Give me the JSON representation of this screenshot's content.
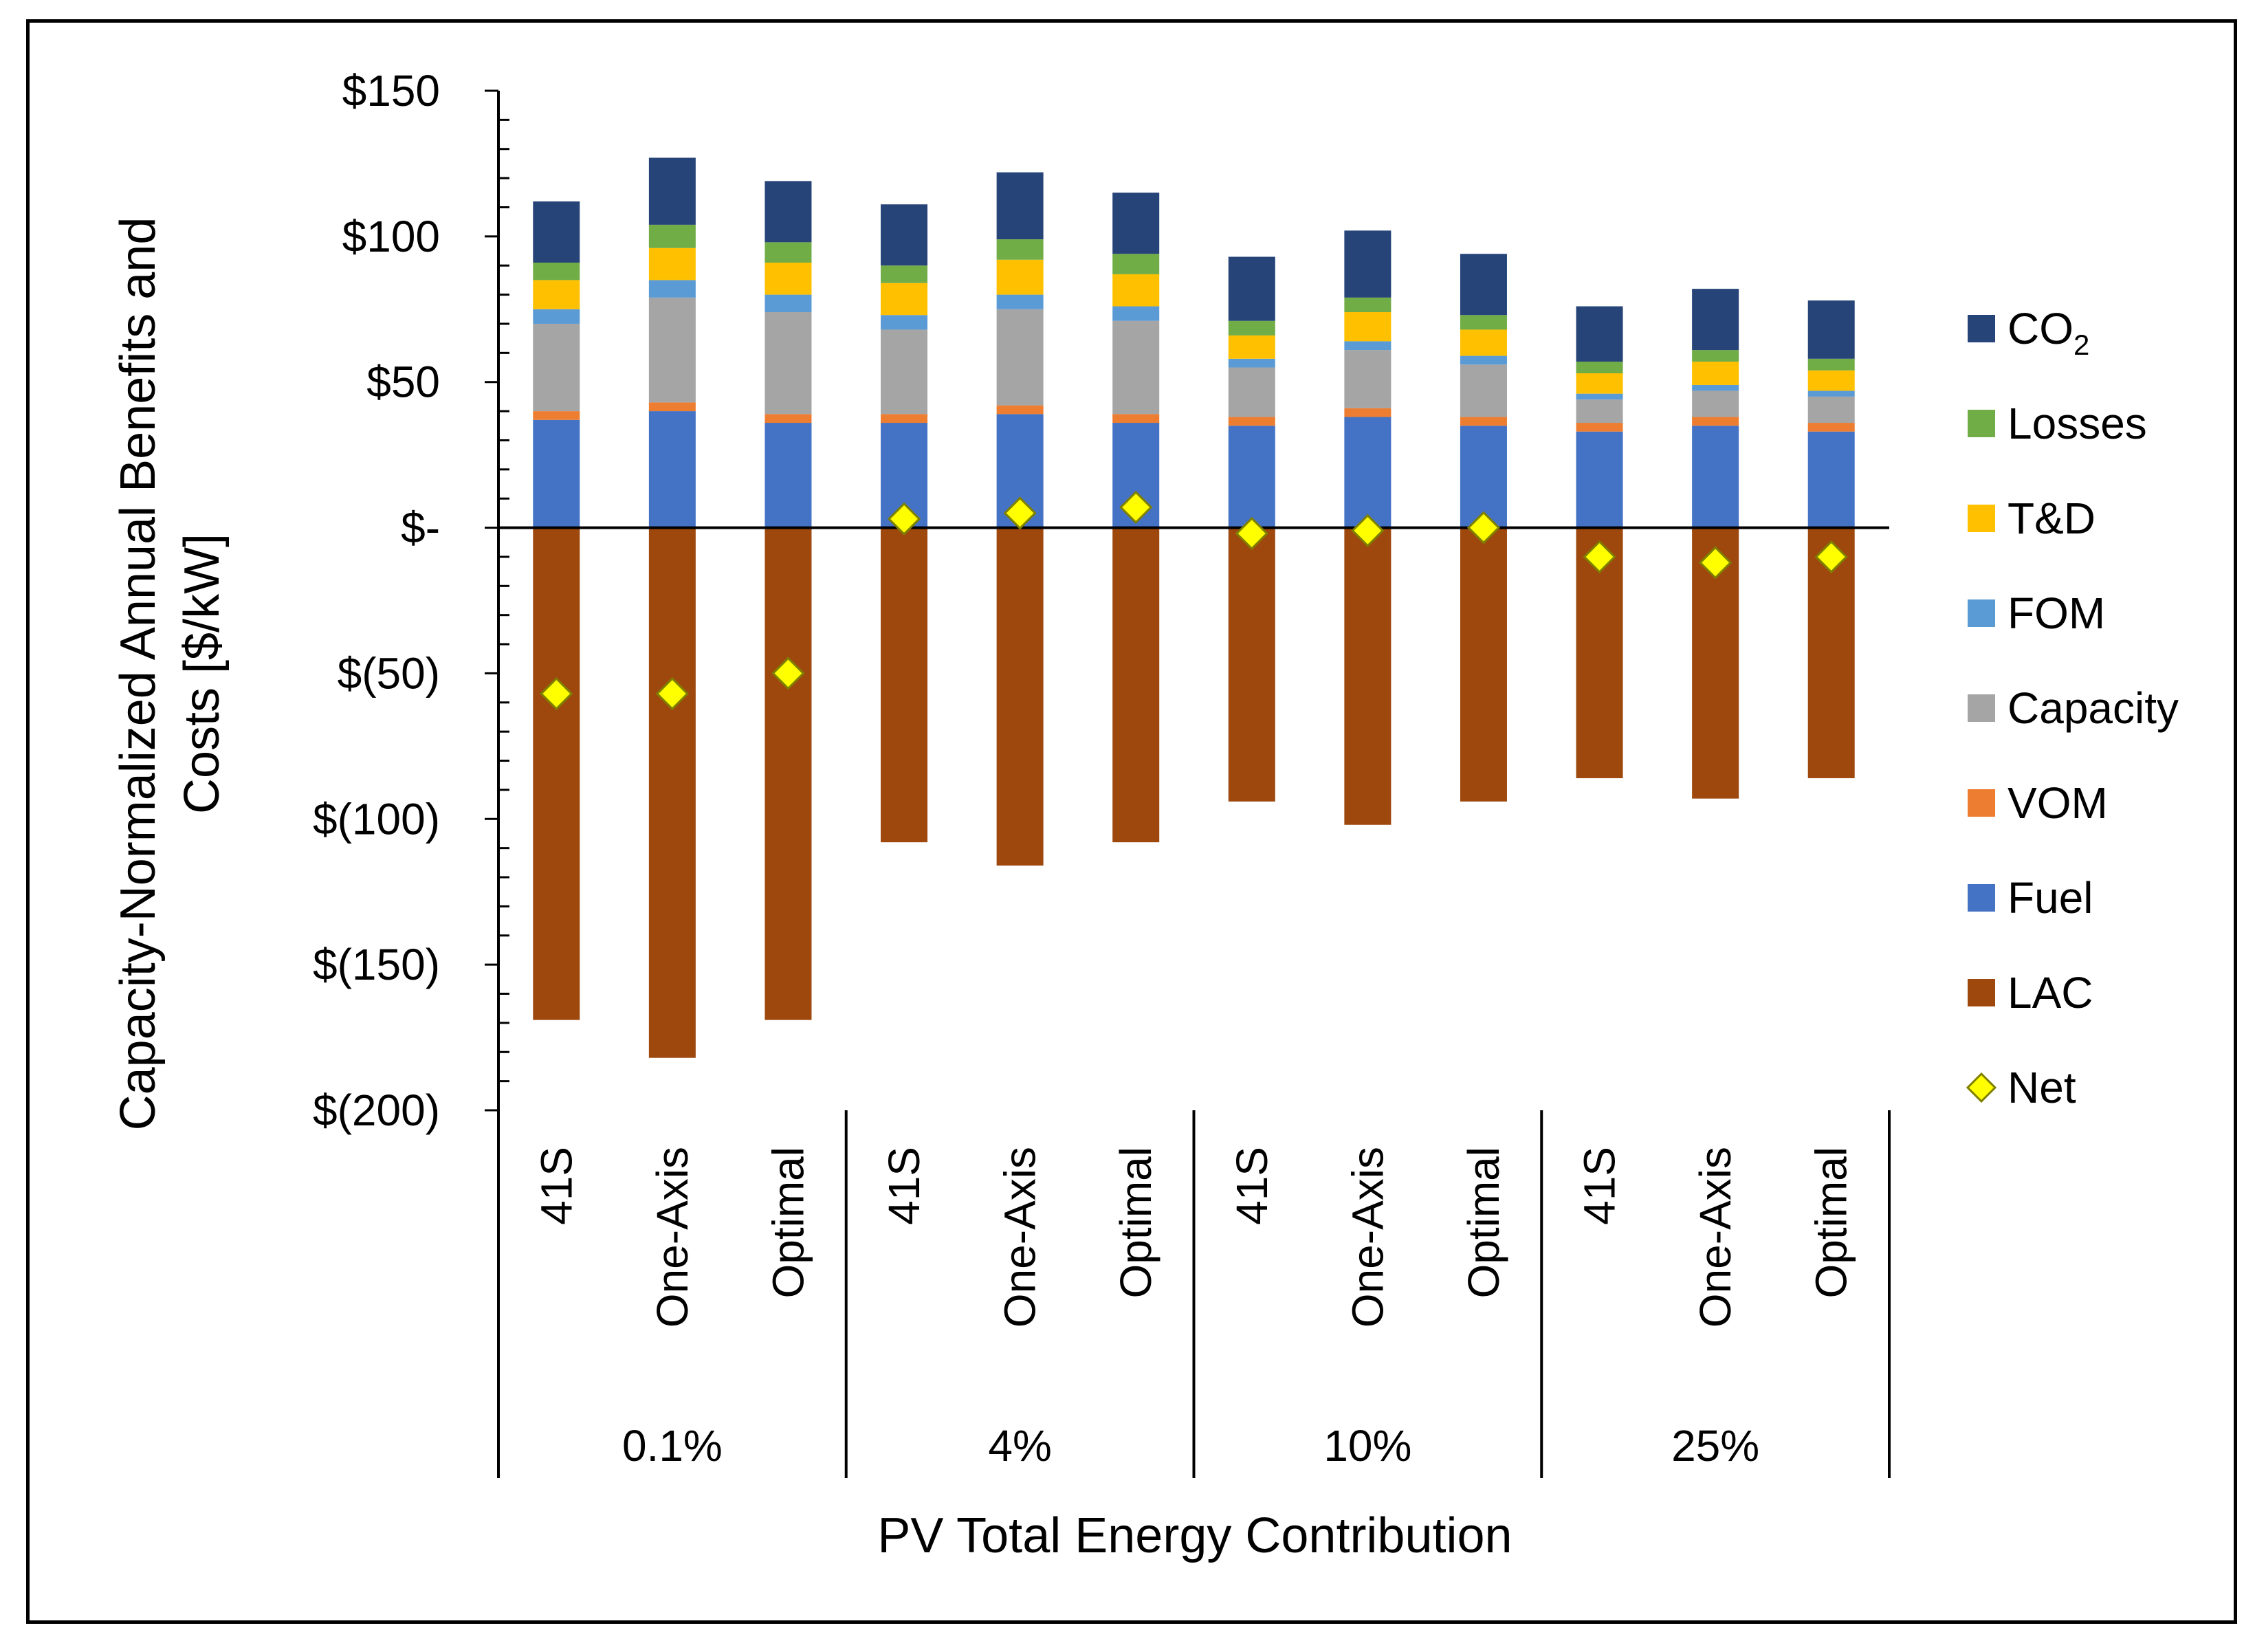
{
  "chart_data": {
    "type": "stacked-bar",
    "xlabel": "PV Total Energy Contribution",
    "ylabel_line1": "Capacity-Normalized Annual Benefits and",
    "ylabel_line2": "Costs [$/kW]",
    "ylim": [
      -200,
      150
    ],
    "yticks": [
      150,
      100,
      50,
      0,
      -50,
      -100,
      -150,
      -200
    ],
    "ytick_labels": [
      "$150",
      "$100",
      "$50",
      "$-",
      "$(50)",
      "$(100)",
      "$(150)",
      "$(200)"
    ],
    "groups": [
      "0.1%",
      "4%",
      "10%",
      "25%"
    ],
    "categories": [
      "41S",
      "One-Axis",
      "Optimal",
      "41S",
      "One-Axis",
      "Optimal",
      "41S",
      "One-Axis",
      "Optimal",
      "41S",
      "One-Axis",
      "Optimal"
    ],
    "series": [
      {
        "name": "Fuel",
        "color": "#4472C4",
        "values": [
          37,
          40,
          36,
          36,
          39,
          36,
          35,
          38,
          35,
          33,
          35,
          33
        ]
      },
      {
        "name": "VOM",
        "color": "#ED7D31",
        "values": [
          3,
          3,
          3,
          3,
          3,
          3,
          3,
          3,
          3,
          3,
          3,
          3
        ]
      },
      {
        "name": "Capacity",
        "color": "#A5A5A5",
        "values": [
          30,
          36,
          35,
          29,
          33,
          32,
          17,
          20,
          18,
          8,
          9,
          9
        ]
      },
      {
        "name": "FOM",
        "color": "#5B9BD5",
        "values": [
          5,
          6,
          6,
          5,
          5,
          5,
          3,
          3,
          3,
          2,
          2,
          2
        ]
      },
      {
        "name": "T&D",
        "color": "#FFC000",
        "values": [
          10,
          11,
          11,
          11,
          12,
          11,
          8,
          10,
          9,
          7,
          8,
          7
        ]
      },
      {
        "name": "Losses",
        "color": "#70AD47",
        "values": [
          6,
          8,
          7,
          6,
          7,
          7,
          5,
          5,
          5,
          4,
          4,
          4
        ]
      },
      {
        "name": "CO2",
        "color": "#264478",
        "values": [
          21,
          23,
          21,
          21,
          23,
          21,
          22,
          23,
          21,
          19,
          21,
          20
        ]
      },
      {
        "name": "LAC",
        "color": "#9E480E",
        "values": [
          -169,
          -182,
          -169,
          -108,
          -116,
          -108,
          -94,
          -102,
          -94,
          -86,
          -93,
          -86
        ]
      }
    ],
    "net": {
      "name": "Net",
      "color": "#FFFF00",
      "values": [
        -57,
        -57,
        -50,
        3,
        5,
        7,
        -2,
        -1,
        0,
        -10,
        -12,
        -10
      ]
    },
    "legend": [
      {
        "label": "CO",
        "sub": "2",
        "color": "#264478",
        "kind": "square"
      },
      {
        "label": "Losses",
        "sub": "",
        "color": "#70AD47",
        "kind": "square"
      },
      {
        "label": "T&D",
        "sub": "",
        "color": "#FFC000",
        "kind": "square"
      },
      {
        "label": "FOM",
        "sub": "",
        "color": "#5B9BD5",
        "kind": "square"
      },
      {
        "label": "Capacity",
        "sub": "",
        "color": "#A5A5A5",
        "kind": "square"
      },
      {
        "label": "VOM",
        "sub": "",
        "color": "#ED7D31",
        "kind": "square"
      },
      {
        "label": "Fuel",
        "sub": "",
        "color": "#4472C4",
        "kind": "square"
      },
      {
        "label": "LAC",
        "sub": "",
        "color": "#9E480E",
        "kind": "square"
      },
      {
        "label": "Net",
        "sub": "",
        "color": "#FFFF00",
        "kind": "diamond"
      }
    ]
  }
}
